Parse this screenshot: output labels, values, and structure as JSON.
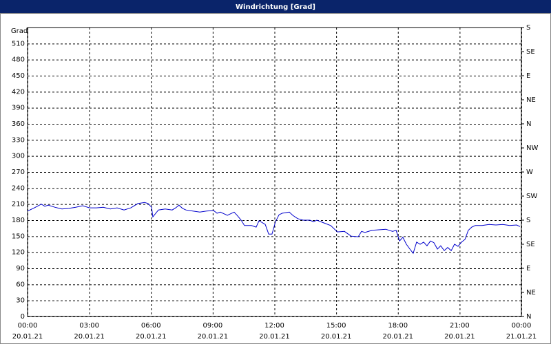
{
  "chart_data": {
    "type": "line",
    "title": "Windrichtung [Grad]",
    "ylabel": "Grad",
    "color": "#0000cc",
    "grid": true,
    "xlim": [
      0,
      24
    ],
    "ylim": [
      0,
      540
    ],
    "y2lim": [
      0,
      540
    ],
    "xticks": [
      {
        "value": 0,
        "label": "00:00"
      },
      {
        "value": 3,
        "label": "03:00"
      },
      {
        "value": 6,
        "label": "06:00"
      },
      {
        "value": 9,
        "label": "09:00"
      },
      {
        "value": 12,
        "label": "12:00"
      },
      {
        "value": 15,
        "label": "15:00"
      },
      {
        "value": 18,
        "label": "18:00"
      },
      {
        "value": 21,
        "label": "21:00"
      },
      {
        "value": 24,
        "label": "00:00"
      }
    ],
    "xtick_dates": [
      "20.01.21",
      "20.01.21",
      "20.01.21",
      "20.01.21",
      "20.01.21",
      "20.01.21",
      "20.01.21",
      "20.01.21",
      "21.01.21"
    ],
    "yticks": [
      0,
      30,
      60,
      90,
      120,
      150,
      180,
      210,
      240,
      270,
      300,
      330,
      360,
      390,
      420,
      450,
      480,
      510
    ],
    "y2ticks": [
      {
        "value": 0,
        "label": "N"
      },
      {
        "value": 45,
        "label": "NE"
      },
      {
        "value": 90,
        "label": "E"
      },
      {
        "value": 135,
        "label": "SE"
      },
      {
        "value": 180,
        "label": "S"
      },
      {
        "value": 225,
        "label": "SW"
      },
      {
        "value": 270,
        "label": "W"
      },
      {
        "value": 315,
        "label": "NW"
      },
      {
        "value": 360,
        "label": "N"
      },
      {
        "value": 405,
        "label": "NE"
      },
      {
        "value": 450,
        "label": "E"
      },
      {
        "value": 495,
        "label": "SE"
      },
      {
        "value": 540,
        "label": "S"
      }
    ],
    "x": [
      0.0,
      0.33,
      0.67,
      0.84,
      1.0,
      1.34,
      1.67,
      2.01,
      2.34,
      2.68,
      3.01,
      3.35,
      3.68,
      4.02,
      4.35,
      4.69,
      5.02,
      5.36,
      5.52,
      5.69,
      5.86,
      6.03,
      6.09,
      6.36,
      6.69,
      7.03,
      7.2,
      7.36,
      7.53,
      7.7,
      8.03,
      8.37,
      8.7,
      9.04,
      9.21,
      9.37,
      9.71,
      10.04,
      10.21,
      10.38,
      10.54,
      10.88,
      11.11,
      11.25,
      11.55,
      11.72,
      11.88,
      12.05,
      12.22,
      12.38,
      12.72,
      12.89,
      13.12,
      13.39,
      13.72,
      13.89,
      14.06,
      14.39,
      14.73,
      15.06,
      15.4,
      15.73,
      16.07,
      16.23,
      16.4,
      16.74,
      17.07,
      17.41,
      17.74,
      17.91,
      18.08,
      18.24,
      18.41,
      18.58,
      18.74,
      18.91,
      19.08,
      19.25,
      19.41,
      19.58,
      19.75,
      19.92,
      20.08,
      20.25,
      20.42,
      20.59,
      20.75,
      20.92,
      21.09,
      21.26,
      21.42,
      21.59,
      21.76,
      22.09,
      22.43,
      22.76,
      23.1,
      23.43,
      23.77,
      23.93
    ],
    "values": [
      197,
      203,
      210,
      206,
      208,
      204,
      201,
      202,
      204,
      207,
      203,
      203,
      204,
      201,
      203,
      199,
      203,
      211,
      212,
      213,
      211,
      204,
      186,
      199,
      201,
      199,
      203,
      208,
      202,
      199,
      197,
      195,
      197,
      198,
      193,
      195,
      189,
      195,
      188,
      180,
      170,
      170,
      167,
      179,
      172,
      154,
      154,
      177,
      190,
      193,
      195,
      189,
      183,
      180,
      180,
      177,
      180,
      175,
      170,
      158,
      159,
      150,
      149,
      159,
      157,
      161,
      162,
      163,
      159,
      161,
      141,
      148,
      135,
      126,
      118,
      139,
      135,
      139,
      132,
      141,
      138,
      126,
      132,
      123,
      129,
      123,
      135,
      131,
      139,
      144,
      161,
      167,
      170,
      170,
      172,
      171,
      172,
      170,
      171,
      168
    ]
  }
}
